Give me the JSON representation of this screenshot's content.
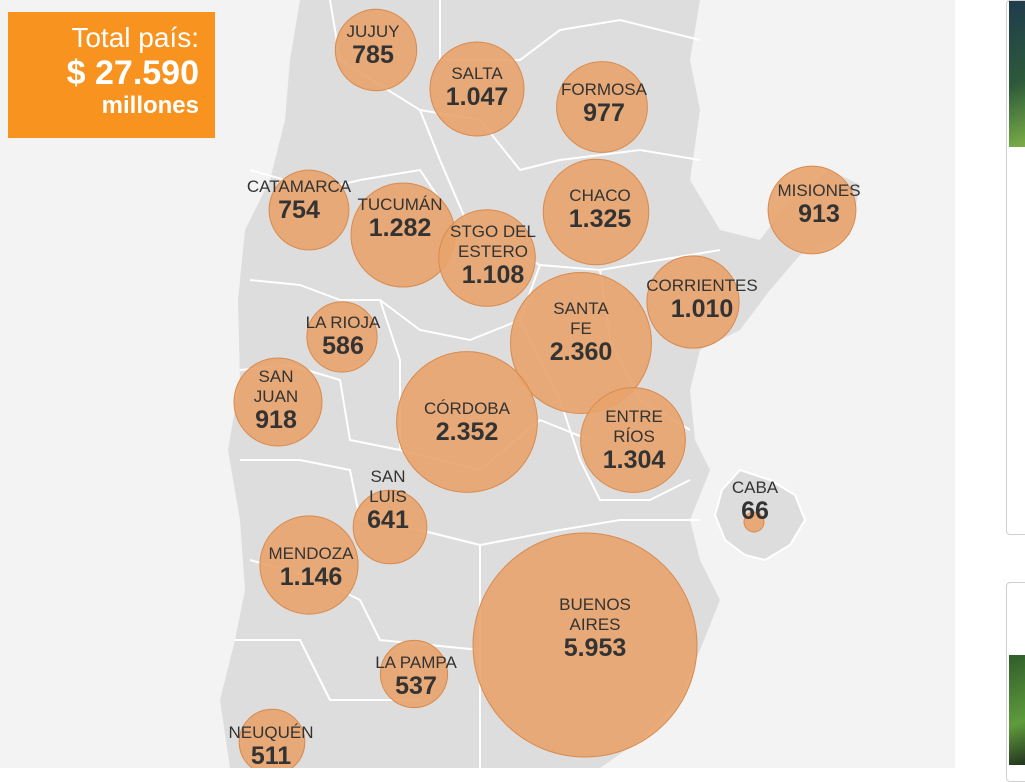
{
  "total": {
    "label": "Total país:",
    "amount": "$ 27.590",
    "unit": "millones"
  },
  "provinces": [
    {
      "id": "jujuy",
      "name": "JUJUY",
      "value": "785",
      "amount": 785
    },
    {
      "id": "salta",
      "name": "SALTA",
      "value": "1.047",
      "amount": 1047
    },
    {
      "id": "formosa",
      "name": "FORMOSA",
      "value": "977",
      "amount": 977
    },
    {
      "id": "catamarca",
      "name": "CATAMARCA",
      "value": "754",
      "amount": 754
    },
    {
      "id": "tucuman",
      "name": "TUCUMÁN",
      "value": "1.282",
      "amount": 1282
    },
    {
      "id": "stgo-del-estero",
      "name": "STGO DEL ESTERO",
      "name_lines": [
        "STGO DEL",
        "ESTERO"
      ],
      "value": "1.108",
      "amount": 1108
    },
    {
      "id": "chaco",
      "name": "CHACO",
      "value": "1.325",
      "amount": 1325
    },
    {
      "id": "misiones",
      "name": "MISIONES",
      "value": "913",
      "amount": 913
    },
    {
      "id": "corrientes",
      "name": "CORRIENTES",
      "value": "1.010",
      "amount": 1010
    },
    {
      "id": "santa-fe",
      "name": "SANTA FE",
      "name_lines": [
        "SANTA",
        "FE"
      ],
      "value": "2.360",
      "amount": 2360
    },
    {
      "id": "la-rioja",
      "name": "LA RIOJA",
      "value": "586",
      "amount": 586
    },
    {
      "id": "san-juan",
      "name": "SAN JUAN",
      "name_lines": [
        "SAN",
        "JUAN"
      ],
      "value": "918",
      "amount": 918
    },
    {
      "id": "cordoba",
      "name": "CÓRDOBA",
      "value": "2.352",
      "amount": 2352
    },
    {
      "id": "entre-rios",
      "name": "ENTRE RÍOS",
      "name_lines": [
        "ENTRE",
        "RÍOS"
      ],
      "value": "1.304",
      "amount": 1304
    },
    {
      "id": "caba",
      "name": "CABA",
      "value": "66",
      "amount": 66
    },
    {
      "id": "san-luis",
      "name": "SAN LUIS",
      "name_lines": [
        "SAN",
        "LUIS"
      ],
      "value": "641",
      "amount": 641
    },
    {
      "id": "mendoza",
      "name": "MENDOZA",
      "value": "1.146",
      "amount": 1146
    },
    {
      "id": "buenos-aires",
      "name": "BUENOS AIRES",
      "name_lines": [
        "BUENOS",
        "AIRES"
      ],
      "value": "5.953",
      "amount": 5953
    },
    {
      "id": "la-pampa",
      "name": "LA PAMPA",
      "value": "537",
      "amount": 537
    },
    {
      "id": "neuquen",
      "name": "NEUQUÉN",
      "value": "511",
      "amount": 511
    }
  ],
  "colors": {
    "bubble_fill": "#e8a36b",
    "bubble_stroke": "#d98a4e",
    "total_box": "#f7931e",
    "map_fill": "#dddddd",
    "map_border": "#ffffff",
    "panel_bg": "#f3f3f3"
  }
}
